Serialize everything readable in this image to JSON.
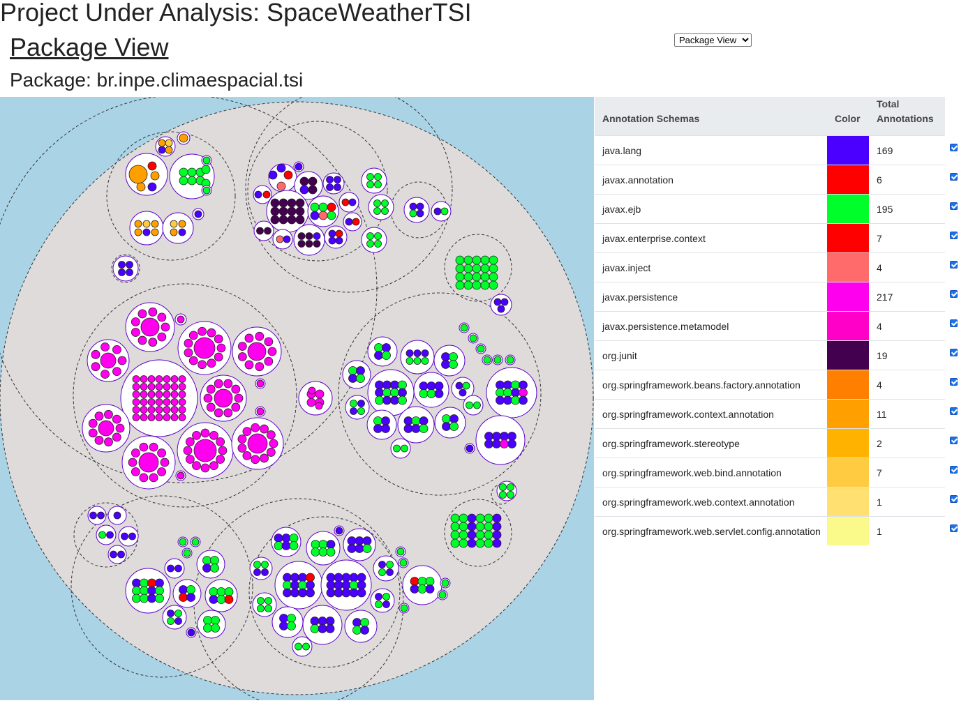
{
  "header": {
    "title": "Project Under Analysis: SpaceWeatherTSI",
    "view_title": "Package View",
    "package_label": "Package: br.inpe.climaespacial.tsi"
  },
  "view_selector": {
    "selected": "Package View",
    "options": [
      "Package View"
    ]
  },
  "legend": {
    "headers": {
      "schema": "Annotation Schemas",
      "color": "Color",
      "total_line1": "Total",
      "total_line2": "Annotations"
    },
    "rows": [
      {
        "name": "java.lang",
        "color": "#4b00ff",
        "total": "169",
        "checked": true
      },
      {
        "name": "javax.annotation",
        "color": "#ff0000",
        "total": "6",
        "checked": true
      },
      {
        "name": "javax.ejb",
        "color": "#00ff2a",
        "total": "195",
        "checked": true
      },
      {
        "name": "javax.enterprise.context",
        "color": "#ff0000",
        "total": "7",
        "checked": true
      },
      {
        "name": "javax.inject",
        "color": "#ff6b6b",
        "total": "4",
        "checked": true
      },
      {
        "name": "javax.persistence",
        "color": "#ff00ee",
        "total": "217",
        "checked": true
      },
      {
        "name": "javax.persistence.metamodel",
        "color": "#ff00c8",
        "total": "4",
        "checked": true
      },
      {
        "name": "org.junit",
        "color": "#43004f",
        "total": "19",
        "checked": true
      },
      {
        "name": "org.springframework.beans.factory.annotation",
        "color": "#ff7f00",
        "total": "4",
        "checked": true
      },
      {
        "name": "org.springframework.context.annotation",
        "color": "#ff9f00",
        "total": "11",
        "checked": true
      },
      {
        "name": "org.springframework.stereotype",
        "color": "#ffb300",
        "total": "2",
        "checked": true
      },
      {
        "name": "org.springframework.web.bind.annotation",
        "color": "#ffcb40",
        "total": "7",
        "checked": true
      },
      {
        "name": "org.springframework.web.context.annotation",
        "color": "#ffe070",
        "total": "1",
        "checked": true
      },
      {
        "name": "org.springframework.web.servlet.config.annotation",
        "color": "#fafa8a",
        "total": "1",
        "checked": true
      }
    ]
  },
  "visualization": {
    "background_color": "#aad4e6",
    "package_fill": "#e0dbdb",
    "class_fill": "#ffffff",
    "class_stroke": "#5a00c8"
  }
}
